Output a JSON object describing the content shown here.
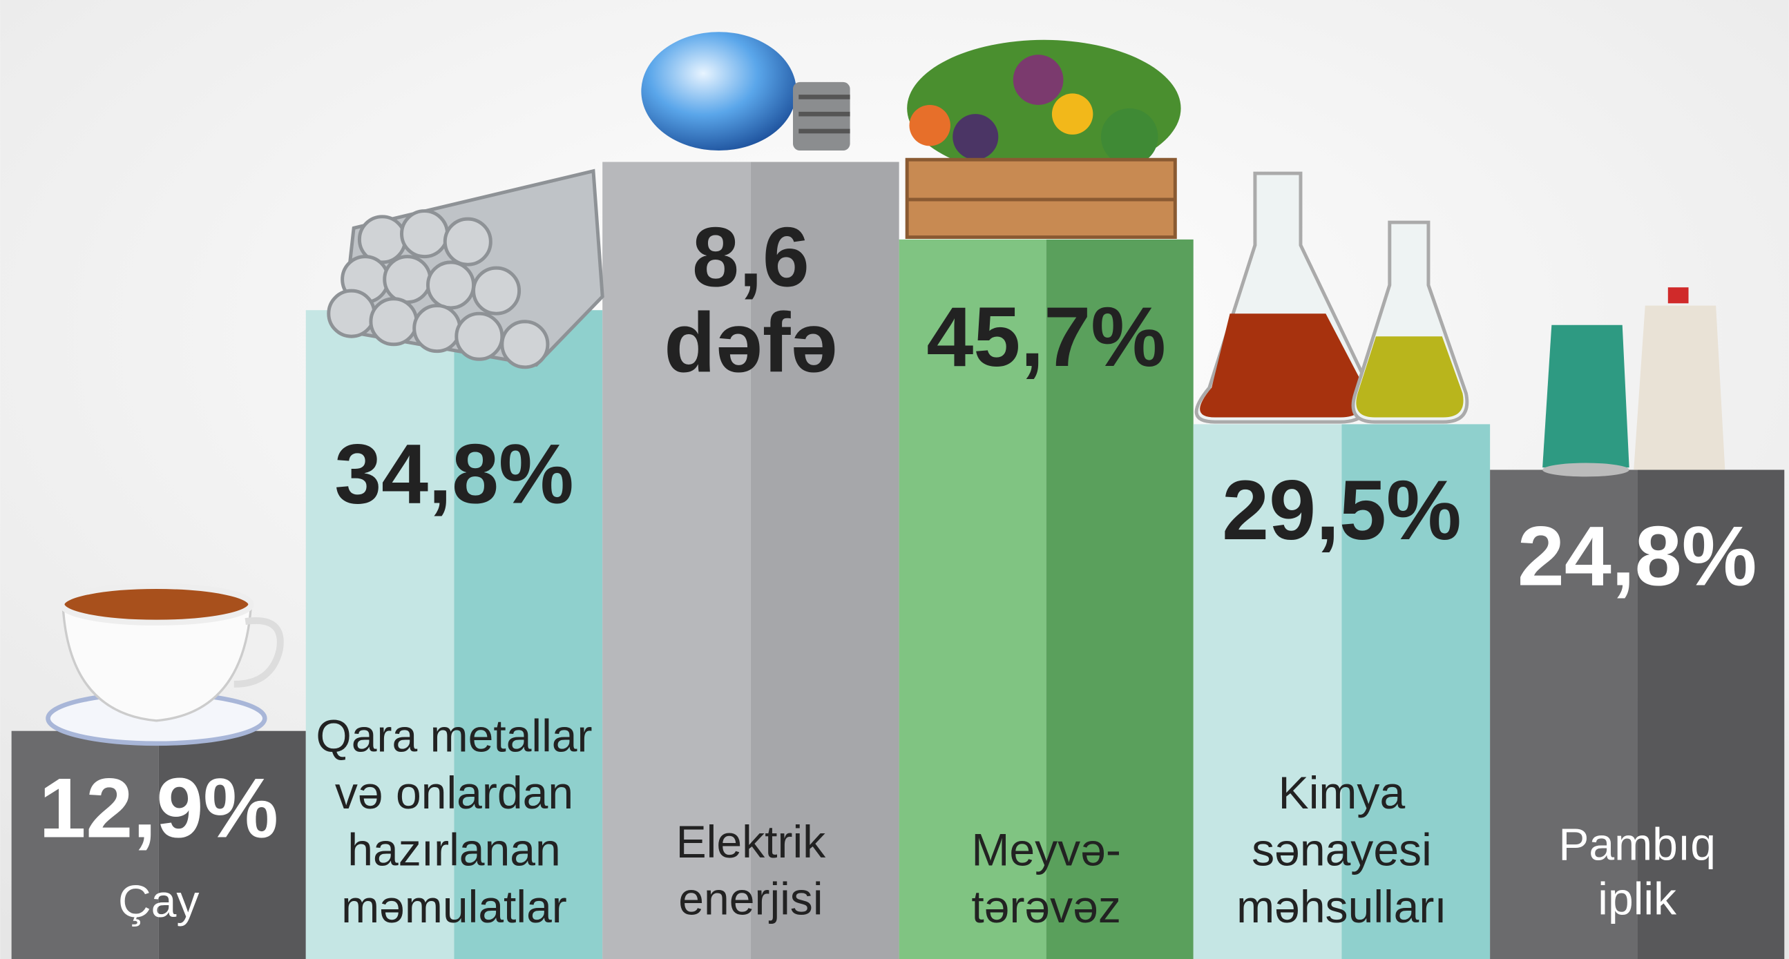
{
  "items": [
    {
      "value": [
        "12,9%"
      ],
      "label": [
        "Çay"
      ]
    },
    {
      "value": [
        "34,8%"
      ],
      "label": [
        "Qara metallar",
        "və onlardan",
        "hazırlanan",
        "məmulatlar"
      ]
    },
    {
      "value": [
        "8,6",
        "dəfə"
      ],
      "label": [
        "Elektrik",
        "enerjisi"
      ]
    },
    {
      "value": [
        "45,7%"
      ],
      "label": [
        "Meyvə-",
        "tərəvəz"
      ]
    },
    {
      "value": [
        "29,5%"
      ],
      "label": [
        "Kimya",
        "sənayesi",
        "məhsulları"
      ]
    },
    {
      "value": [
        "24,8%"
      ],
      "label": [
        "Pambıq",
        "iplik"
      ]
    }
  ]
}
